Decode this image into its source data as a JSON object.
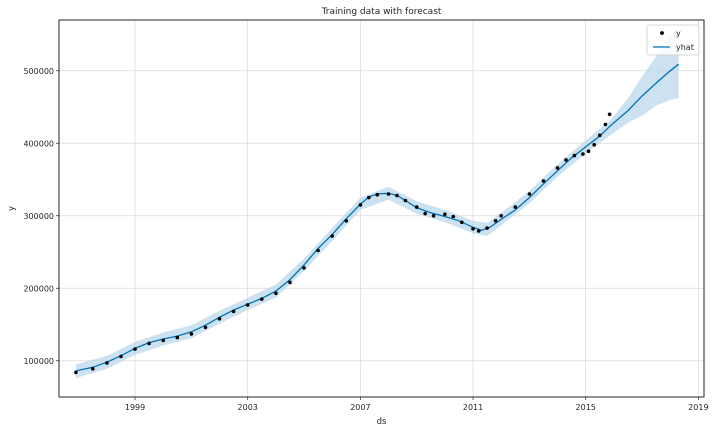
{
  "chart_data": {
    "type": "line",
    "title": "Training data with forecast",
    "xlabel": "ds",
    "ylabel": "y",
    "xlim": [
      1996.3,
      2019.2
    ],
    "ylim": [
      50000,
      570000
    ],
    "x_ticks": [
      1999,
      2003,
      2007,
      2011,
      2015,
      2019
    ],
    "y_ticks": [
      100000,
      200000,
      300000,
      400000,
      500000
    ],
    "grid": true,
    "legend_position": "top-right",
    "legend": [
      "y",
      "yhat"
    ],
    "colors": {
      "observed": "#000000",
      "forecast": "#0072B2",
      "interval": "#BBD8EC",
      "grid": "#D9D9D9",
      "frame": "#262626"
    },
    "series": [
      {
        "name": "y",
        "kind": "scatter",
        "x": [
          1996.9,
          1997.5,
          1998.0,
          1998.5,
          1999.0,
          1999.5,
          2000.0,
          2000.5,
          2001.0,
          2001.5,
          2002.0,
          2002.5,
          2003.0,
          2003.5,
          2004.0,
          2004.5,
          2005.0,
          2005.5,
          2006.0,
          2006.5,
          2007.0,
          2007.3,
          2007.6,
          2008.0,
          2008.3,
          2008.6,
          2009.0,
          2009.3,
          2009.6,
          2010.0,
          2010.3,
          2010.6,
          2011.0,
          2011.2,
          2011.5,
          2011.8,
          2012.0,
          2012.5,
          2013.0,
          2013.5,
          2014.0,
          2014.3,
          2014.6,
          2014.9,
          2015.1,
          2015.3,
          2015.5,
          2015.7,
          2015.85
        ],
        "y": [
          84000,
          89000,
          97000,
          106000,
          116000,
          124000,
          128000,
          132000,
          137000,
          146000,
          158000,
          168000,
          177000,
          185000,
          193000,
          208000,
          228000,
          252000,
          272000,
          293000,
          315000,
          325000,
          329000,
          330000,
          328000,
          321000,
          312000,
          303000,
          300000,
          302000,
          299000,
          291000,
          282000,
          279000,
          283000,
          293000,
          300000,
          312000,
          330000,
          348000,
          366000,
          377000,
          383000,
          385000,
          389000,
          398000,
          411000,
          426000,
          440000
        ]
      },
      {
        "name": "yhat",
        "kind": "line",
        "x": [
          1996.9,
          1997.5,
          1998.0,
          1998.5,
          1999.0,
          1999.5,
          2000.0,
          2000.5,
          2001.0,
          2001.5,
          2002.0,
          2002.5,
          2003.0,
          2003.5,
          2004.0,
          2004.5,
          2005.0,
          2005.5,
          2006.0,
          2006.5,
          2007.0,
          2007.3,
          2007.6,
          2008.0,
          2008.3,
          2008.6,
          2009.0,
          2009.5,
          2010.0,
          2010.5,
          2011.0,
          2011.3,
          2011.6,
          2012.0,
          2012.5,
          2013.0,
          2013.5,
          2014.0,
          2014.5,
          2015.0,
          2015.5,
          2015.9,
          2016.5,
          2017.0,
          2017.5,
          2018.0,
          2018.3
        ],
        "y": [
          86000,
          91000,
          98000,
          107000,
          117000,
          125000,
          130000,
          134000,
          140000,
          149000,
          160000,
          170000,
          178000,
          186000,
          196000,
          212000,
          232000,
          255000,
          274000,
          296000,
          316000,
          326000,
          330000,
          331000,
          328000,
          321000,
          311000,
          304000,
          299000,
          293000,
          284000,
          280000,
          284000,
          295000,
          308000,
          325000,
          344000,
          362000,
          380000,
          395000,
          410000,
          425000,
          445000,
          465000,
          483000,
          500000,
          509000
        ]
      },
      {
        "name": "yhat uncertainty interval",
        "kind": "band",
        "x": [
          1996.9,
          1998.0,
          1999.0,
          2000.0,
          2001.0,
          2002.0,
          2003.0,
          2004.0,
          2005.0,
          2006.0,
          2007.0,
          2008.0,
          2009.0,
          2010.0,
          2011.0,
          2011.5,
          2012.0,
          2013.0,
          2014.0,
          2015.0,
          2015.9,
          2016.5,
          2017.0,
          2017.5,
          2018.0,
          2018.3
        ],
        "lower": [
          76000,
          89000,
          108000,
          121000,
          131000,
          151000,
          170000,
          187000,
          224000,
          265000,
          308000,
          322000,
          303000,
          291000,
          276000,
          272000,
          287000,
          317000,
          354000,
          386000,
          412000,
          428000,
          438000,
          452000,
          460000,
          462000
        ],
        "upper": [
          95000,
          107000,
          126000,
          139000,
          149000,
          169000,
          187000,
          205000,
          241000,
          283000,
          325000,
          340000,
          320000,
          308000,
          293000,
          290000,
          304000,
          334000,
          371000,
          404000,
          433000,
          462000,
          492000,
          520000,
          548000,
          557000
        ]
      }
    ]
  }
}
